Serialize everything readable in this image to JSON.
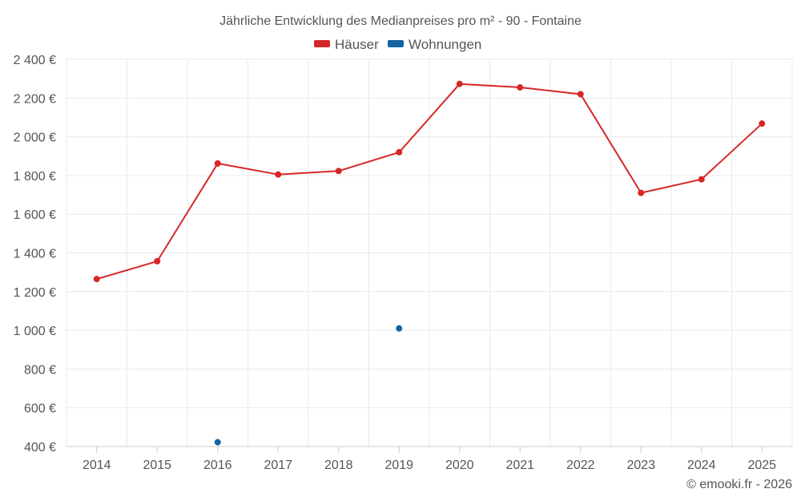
{
  "chart_data": {
    "type": "line",
    "title": "Jährliche Entwicklung des Medianpreises pro m² - 90 - Fontaine",
    "categories": [
      "2014",
      "2015",
      "2016",
      "2017",
      "2018",
      "2019",
      "2020",
      "2021",
      "2022",
      "2023",
      "2024",
      "2025"
    ],
    "y_ticks": [
      {
        "value": 400,
        "label": "400 €"
      },
      {
        "value": 600,
        "label": "600 €"
      },
      {
        "value": 800,
        "label": "800 €"
      },
      {
        "value": 1000,
        "label": "1 000 €"
      },
      {
        "value": 1200,
        "label": "1 200 €"
      },
      {
        "value": 1400,
        "label": "1 400 €"
      },
      {
        "value": 1600,
        "label": "1 600 €"
      },
      {
        "value": 1800,
        "label": "1 800 €"
      },
      {
        "value": 2000,
        "label": "2 000 €"
      },
      {
        "value": 2200,
        "label": "2 200 €"
      },
      {
        "value": 2400,
        "label": "2 400 €"
      }
    ],
    "ylim": [
      400,
      2400
    ],
    "xlabel": "",
    "ylabel": "",
    "legend_position": "top-center",
    "grid": true,
    "series": [
      {
        "name": "Häuser",
        "color": "#d62728",
        "values": [
          1265,
          1357,
          1862,
          1805,
          1823,
          1920,
          2273,
          2255,
          2220,
          1710,
          1780,
          2068
        ]
      },
      {
        "name": "Wohnungen",
        "color": "#1565a0",
        "values": [
          null,
          null,
          422,
          null,
          null,
          1010,
          null,
          null,
          null,
          null,
          null,
          null
        ]
      }
    ],
    "credit": "© emooki.fr - 2026"
  }
}
